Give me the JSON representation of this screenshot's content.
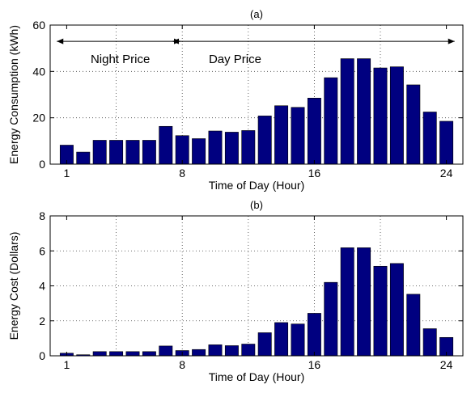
{
  "chart_data": [
    {
      "type": "bar",
      "title": "(a)",
      "xlabel": "Time of Day (Hour)",
      "ylabel": "Energy Consumption (kWh)",
      "xlim": [
        0,
        25
      ],
      "ylim": [
        0,
        60
      ],
      "xticks": [
        1,
        8,
        16,
        24
      ],
      "yticks": [
        0,
        20,
        40,
        60
      ],
      "x_grid_values": [
        4,
        8,
        12,
        16,
        20
      ],
      "grid": true,
      "bar_color": "#000080",
      "categories": [
        1,
        2,
        3,
        4,
        5,
        6,
        7,
        8,
        9,
        10,
        11,
        12,
        13,
        14,
        15,
        16,
        17,
        18,
        19,
        20,
        21,
        22,
        23,
        24
      ],
      "values": [
        8.2,
        5.2,
        10.3,
        10.3,
        10.3,
        10.3,
        16.3,
        12.3,
        11.0,
        14.3,
        13.8,
        14.5,
        20.8,
        25.2,
        24.5,
        28.5,
        37.3,
        45.5,
        45.5,
        41.5,
        42.0,
        34.2,
        22.5,
        18.5
      ],
      "annotations": [
        {
          "text": "Night Price",
          "x_start": 1,
          "x_end": 8,
          "y": 53
        },
        {
          "text": "Day Price",
          "x_start": 8,
          "x_end": 24,
          "y": 53
        }
      ]
    },
    {
      "type": "bar",
      "title": "(b)",
      "xlabel": "Time of Day (Hour)",
      "ylabel": "Energy Cost (Dollars)",
      "xlim": [
        0,
        25
      ],
      "ylim": [
        0,
        8
      ],
      "xticks": [
        1,
        8,
        16,
        24
      ],
      "yticks": [
        0,
        2,
        4,
        6,
        8
      ],
      "x_grid_values": [
        4,
        8,
        12,
        16,
        20
      ],
      "grid": true,
      "bar_color": "#000080",
      "categories": [
        1,
        2,
        3,
        4,
        5,
        6,
        7,
        8,
        9,
        10,
        11,
        12,
        13,
        14,
        15,
        16,
        17,
        18,
        19,
        20,
        21,
        22,
        23,
        24
      ],
      "values": [
        0.15,
        0.06,
        0.24,
        0.24,
        0.24,
        0.24,
        0.56,
        0.3,
        0.36,
        0.63,
        0.58,
        0.67,
        1.32,
        1.9,
        1.82,
        2.43,
        4.2,
        6.18,
        6.18,
        5.12,
        5.28,
        3.52,
        1.55,
        1.05
      ]
    }
  ]
}
